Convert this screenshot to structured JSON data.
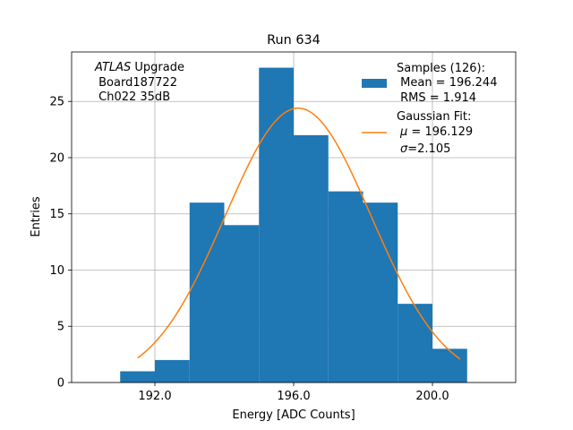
{
  "chart_data": {
    "type": "bar",
    "title": "Run 634",
    "xlabel": "Energy [ADC Counts]",
    "ylabel": "Entries",
    "xlim": [
      189.6,
      202.4
    ],
    "ylim": [
      0,
      29.4
    ],
    "grid": true,
    "x_ticks": [
      192.0,
      196.0,
      200.0
    ],
    "x_tick_labels": [
      "192.0",
      "196.0",
      "200.0"
    ],
    "y_ticks": [
      0,
      5,
      10,
      15,
      20,
      25
    ],
    "y_tick_labels": [
      "0",
      "5",
      "10",
      "15",
      "20",
      "25"
    ],
    "histogram": {
      "bin_edges": [
        191,
        192,
        193,
        194,
        195,
        196,
        197,
        198,
        199,
        200,
        201
      ],
      "counts": [
        1,
        2,
        16,
        14,
        28,
        22,
        17,
        16,
        7,
        3
      ],
      "color": "#1f77b4"
    },
    "fit": {
      "type": "gaussian",
      "mu": 196.129,
      "sigma": 2.105,
      "amplitude": 24.4,
      "x_range": [
        191.5,
        200.8
      ],
      "color": "#ff7f0e"
    },
    "annotation": {
      "italic": "ATLAS",
      "line1_rest": " Upgrade",
      "line2": " Board187722",
      "line3": " Ch022 35dB"
    },
    "legend": {
      "position": "top-right",
      "samples_lines": [
        "Samples (126):",
        " Mean = 196.244",
        " RMS = 1.914"
      ],
      "fit_title": "Gaussian Fit:",
      "fit_mu_symbol": "μ",
      "fit_mu_rest": " = 196.129",
      "fit_sigma_symbol": "σ",
      "fit_sigma_rest": "=2.105"
    }
  }
}
